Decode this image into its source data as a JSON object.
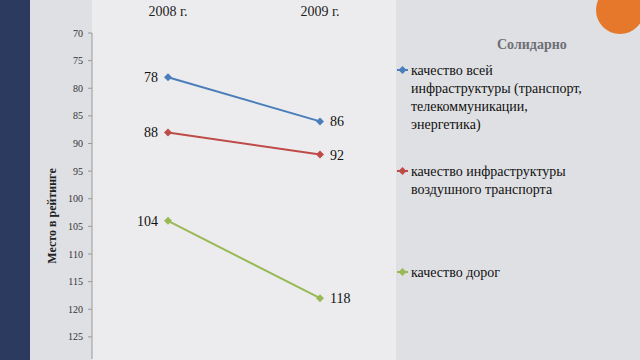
{
  "chart_data": {
    "type": "line",
    "categories": [
      "2008 г.",
      "2009 г."
    ],
    "ylabel": "Место в рейтинге",
    "ylim": [
      129,
      70
    ],
    "yticks": [
      70,
      75,
      80,
      85,
      90,
      95,
      100,
      105,
      110,
      115,
      120,
      125
    ],
    "grid": false,
    "legend": "right",
    "data_labels": true,
    "marker": "diamond",
    "series": [
      {
        "name": "качество всей инфраструктуры (транспорт, телекоммуникации, энергетика)",
        "color": "#4a7ebb",
        "values": [
          78,
          86
        ]
      },
      {
        "name": "качество инфраструктуры воздушного транспорта",
        "color": "#be4b48",
        "values": [
          88,
          92
        ]
      },
      {
        "name": "качество дорог",
        "color": "#98b954",
        "values": [
          104,
          118
        ]
      }
    ]
  },
  "logo": "Солидарно"
}
